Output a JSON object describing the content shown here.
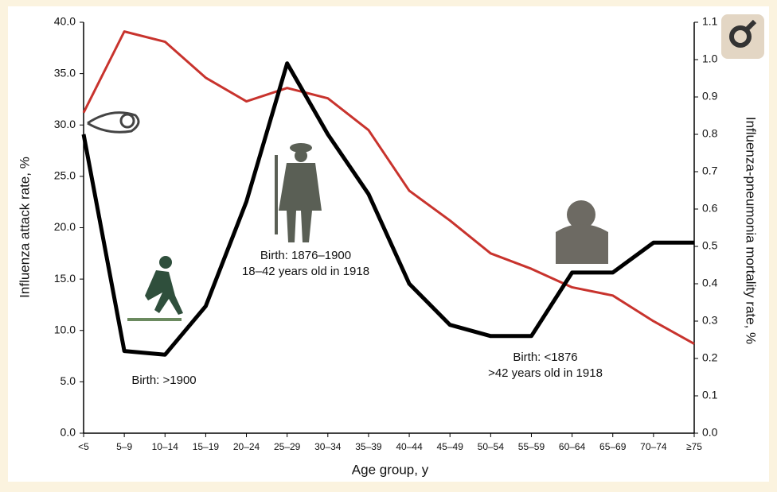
{
  "chart_data": {
    "type": "line",
    "x_label": "Age group, y",
    "y_label": "Influenza attack rate, %",
    "y2_label": "Influenza-pneumonia mortality rate, %",
    "categories": [
      "<5",
      "5–9",
      "10–14",
      "15–19",
      "20–24",
      "25–29",
      "30–34",
      "35–39",
      "40–44",
      "45–49",
      "50–54",
      "55–59",
      "60–64",
      "65–69",
      "70–74",
      "≥75"
    ],
    "series": [
      {
        "name": "Influenza attack rate",
        "color": "#c8332d",
        "values": [
          31.2,
          39.1,
          38.1,
          34.6,
          32.3,
          33.6,
          32.6,
          29.5,
          23.6,
          20.7,
          17.5,
          16.0,
          14.2,
          13.4,
          10.9,
          8.7
        ]
      },
      {
        "name": "Influenza-pneumonia mortality rate",
        "color": "#000000",
        "axis": "y2",
        "values": [
          0.8,
          0.22,
          0.21,
          0.34,
          0.62,
          0.99,
          0.8,
          0.64,
          0.4,
          0.29,
          0.26,
          0.26,
          0.43,
          0.43,
          0.51,
          0.51
        ]
      }
    ],
    "ylim": [
      0,
      40
    ],
    "yticks": [
      {
        "value": 0,
        "label": "0.0"
      },
      {
        "value": 5,
        "label": "5.0"
      },
      {
        "value": 10,
        "label": "10.0"
      },
      {
        "value": 15,
        "label": "15.0"
      },
      {
        "value": 20,
        "label": "20.0"
      },
      {
        "value": 25,
        "label": "25.0"
      },
      {
        "value": 30,
        "label": "30.0"
      },
      {
        "value": 35,
        "label": "35.0"
      },
      {
        "value": 40,
        "label": "40.0"
      }
    ],
    "y2lim": [
      0,
      1.1
    ],
    "y2ticks": [
      {
        "value": 0,
        "label": "0.0"
      },
      0.1,
      0.2,
      0.3,
      0.4,
      0.5,
      0.6,
      0.7,
      0.8,
      0.9,
      {
        "value": 1,
        "label": "1.0"
      },
      1.1
    ],
    "annotations": [
      "Birth: >1900",
      "Birth: 1876–1900",
      "18–42 years old in 1918",
      "Birth: <1876",
      ">42 years old in 1918"
    ]
  }
}
